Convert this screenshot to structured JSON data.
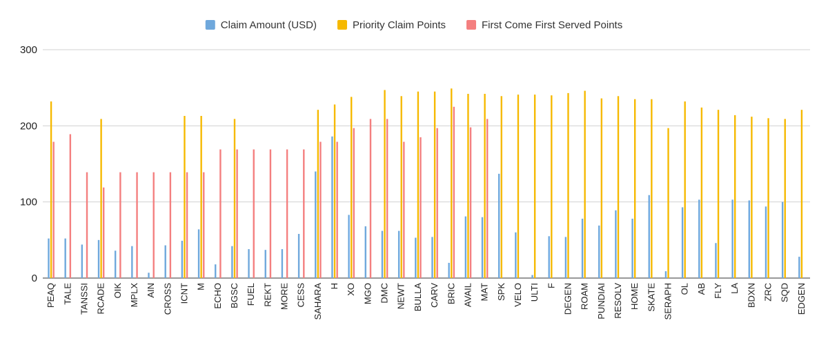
{
  "chart_data": {
    "type": "bar",
    "categories": [
      "PEAQ",
      "TALE",
      "TANSSI",
      "RCADE",
      "OIK",
      "MPLX",
      "AIN",
      "CROSS",
      "ICNT",
      "M",
      "ECHO",
      "BGSC",
      "FUEL",
      "REKT",
      "MORE",
      "CESS",
      "SAHARA",
      "H",
      "XO",
      "MGO",
      "DMC",
      "NEWT",
      "BULLA",
      "CARV",
      "BRIC",
      "AVAIL",
      "MAT",
      "SPK",
      "VELO",
      "ULTI",
      "F",
      "DEGEN",
      "ROAM",
      "PUNDIAI",
      "RESOLV",
      "HOME",
      "SKATE",
      "SERAPH",
      "OL",
      "AB",
      "FLY",
      "LA",
      "BDXN",
      "ZRC",
      "SQD",
      "EDGEN"
    ],
    "series": [
      {
        "name": "Claim Amount (USD)",
        "color": "#6fa8dc",
        "values": [
          52,
          52,
          44,
          50,
          36,
          42,
          7,
          43,
          49,
          64,
          18,
          42,
          38,
          37,
          38,
          58,
          140,
          186,
          83,
          68,
          62,
          62,
          53,
          54,
          20,
          81,
          80,
          137,
          60,
          4,
          55,
          54,
          78,
          69,
          89,
          78,
          109,
          9,
          93,
          103,
          46,
          103,
          102,
          94,
          100,
          28
        ]
      },
      {
        "name": "Priority Claim Points",
        "color": "#f6b900",
        "values": [
          232,
          null,
          null,
          209,
          null,
          null,
          null,
          null,
          213,
          213,
          null,
          209,
          null,
          null,
          null,
          null,
          221,
          228,
          238,
          null,
          247,
          239,
          245,
          245,
          249,
          242,
          242,
          239,
          241,
          241,
          240,
          243,
          246,
          236,
          239,
          235,
          235,
          197,
          232,
          224,
          221,
          214,
          212,
          210,
          209,
          221
        ]
      },
      {
        "name": "First Come First Served Points",
        "color": "#f47f7f",
        "values": [
          179,
          189,
          139,
          119,
          139,
          139,
          139,
          139,
          139,
          139,
          169,
          169,
          169,
          169,
          169,
          169,
          179,
          179,
          197,
          209,
          209,
          179,
          185,
          197,
          225,
          198,
          209,
          null,
          null,
          null,
          null,
          null,
          null,
          null,
          null,
          null,
          null,
          null,
          null,
          null,
          null,
          null,
          null,
          null,
          null,
          null
        ]
      }
    ],
    "yticks": [
      "0",
      "100",
      "200",
      "300"
    ],
    "ylim": [
      0,
      300
    ],
    "grid": true,
    "legend_position": "top-center"
  }
}
